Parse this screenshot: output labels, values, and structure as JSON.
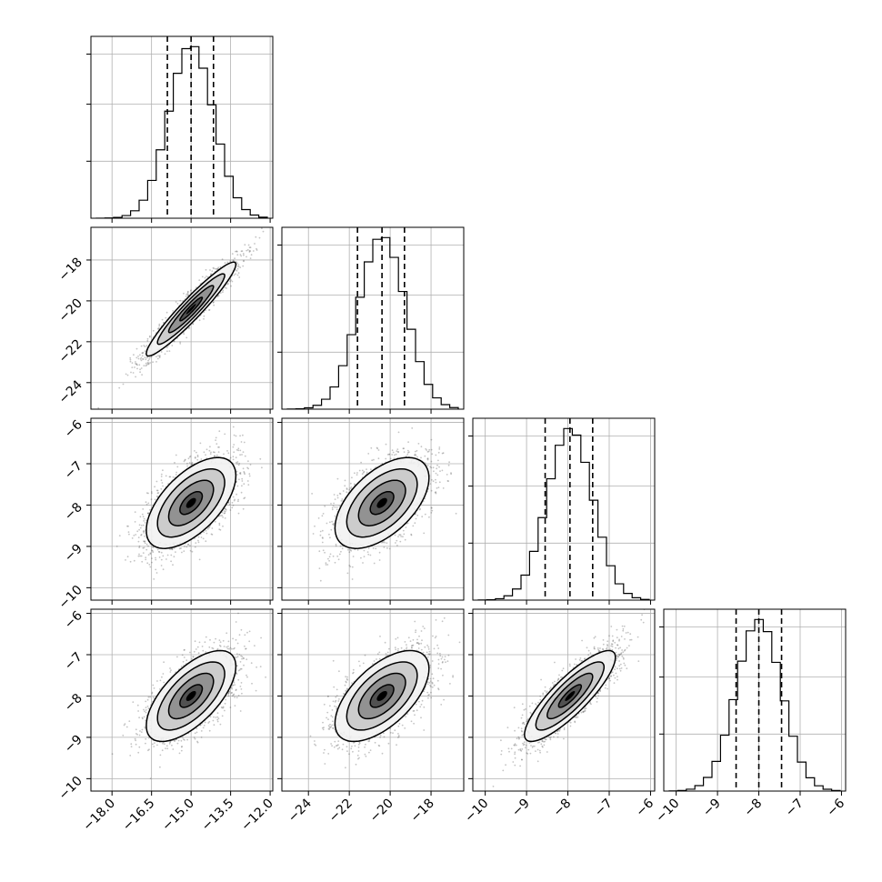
{
  "chart_data": {
    "type": "corner",
    "grid": true,
    "variables": [
      {
        "range": [
          -18.8,
          -11.9
        ],
        "ticks": [
          -18.0,
          -16.5,
          -15.0,
          -13.5,
          -12.0
        ],
        "tick_labels": [
          "−18.0",
          "−16.5",
          "−15.0",
          "−13.5",
          "−12.0"
        ],
        "quantiles": [
          -15.9,
          -15.0,
          -14.15
        ],
        "mean": -15.0,
        "sd": 0.85
      },
      {
        "range": [
          -25.3,
          -16.4
        ],
        "ticks": [
          -24,
          -22,
          -20,
          -18
        ],
        "tick_labels": [
          "−24",
          "−22",
          "−20",
          "−18"
        ],
        "quantiles": [
          -21.6,
          -20.4,
          -19.3
        ],
        "mean": -20.4,
        "sd": 1.15
      },
      {
        "range": [
          -10.3,
          -5.9
        ],
        "ticks": [
          -10,
          -9,
          -8,
          -7,
          -6
        ],
        "tick_labels": [
          "−10",
          "−9",
          "−8",
          "−7",
          "−6"
        ],
        "quantiles": [
          -8.55,
          -7.95,
          -7.4
        ],
        "mean": -7.95,
        "sd": 0.55
      },
      {
        "range": [
          -10.3,
          -5.9
        ],
        "ticks": [
          -10,
          -9,
          -8,
          -7,
          -6
        ],
        "tick_labels": [
          "−10",
          "−9",
          "−8",
          "−7",
          "−6"
        ],
        "quantiles": [
          -8.55,
          -8.0,
          -7.45
        ],
        "mean": -8.0,
        "sd": 0.55
      }
    ],
    "correlations": [
      {
        "row": 1,
        "col": 0,
        "rho": 0.95
      },
      {
        "row": 2,
        "col": 0,
        "rho": 0.6
      },
      {
        "row": 2,
        "col": 1,
        "rho": 0.55
      },
      {
        "row": 3,
        "col": 0,
        "rho": 0.65
      },
      {
        "row": 3,
        "col": 1,
        "rho": 0.6
      },
      {
        "row": 3,
        "col": 2,
        "rho": 0.85
      }
    ],
    "contour_levels_sigma": [
      0.5,
      1.0,
      1.5,
      2.0
    ],
    "colors": {
      "contour": "#000000",
      "points": "#555555",
      "grid": "#b0b0b0",
      "quantile_line": "#000000"
    }
  }
}
